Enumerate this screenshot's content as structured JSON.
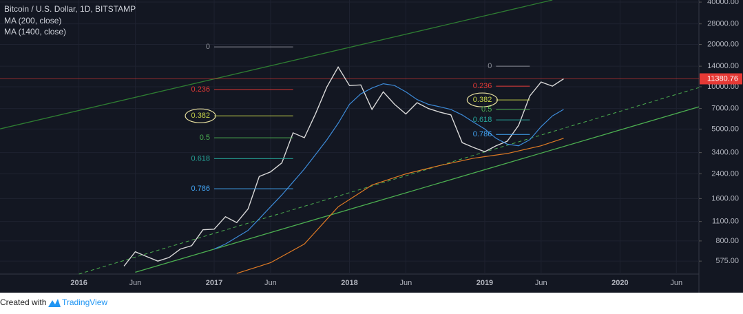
{
  "chart_data": {
    "type": "line",
    "title": "Bitcoin / U.S. Dollar, 1D, BITSTAMP",
    "log_scale": true,
    "xlim": [
      "2015-06",
      "2020-08"
    ],
    "xticks": [
      {
        "value": "2016-01",
        "label": "2016"
      },
      {
        "value": "2016-06",
        "label": "Jun"
      },
      {
        "value": "2017-01",
        "label": "2017"
      },
      {
        "value": "2017-06",
        "label": "Jun"
      },
      {
        "value": "2018-01",
        "label": "2018"
      },
      {
        "value": "2018-06",
        "label": "Jun"
      },
      {
        "value": "2019-01",
        "label": "2019"
      },
      {
        "value": "2019-06",
        "label": "Jun"
      },
      {
        "value": "2020-01",
        "label": "2020"
      },
      {
        "value": "2020-06",
        "label": "Jun"
      }
    ],
    "ylim": [
      465,
      41400
    ],
    "yticks": [
      {
        "value": 40000,
        "label": "40000.00"
      },
      {
        "value": 28000,
        "label": "28000.00"
      },
      {
        "value": 20000,
        "label": "20000.00"
      },
      {
        "value": 14000,
        "label": "14000.00"
      },
      {
        "value": 10000,
        "label": "10000.00"
      },
      {
        "value": 7000,
        "label": "7000.00"
      },
      {
        "value": 5000,
        "label": "5000.00"
      },
      {
        "value": 3400,
        "label": "3400.00"
      },
      {
        "value": 2400,
        "label": "2400.00"
      },
      {
        "value": 1600,
        "label": "1600.00"
      },
      {
        "value": 1100,
        "label": "1100.00"
      },
      {
        "value": 800,
        "label": "800.00"
      },
      {
        "value": 575,
        "label": "575.00"
      }
    ],
    "grid": true,
    "last_price": 11380.76,
    "last_price_color": "#e53935",
    "series": [
      {
        "name": "BTCUSD",
        "color": "#d8d8d8",
        "x": [
          "2016-05",
          "2016-06",
          "2016-07",
          "2016-08",
          "2016-09",
          "2016-10",
          "2016-11",
          "2016-12",
          "2017-01",
          "2017-02",
          "2017-03",
          "2017-04",
          "2017-05",
          "2017-06",
          "2017-07",
          "2017-08",
          "2017-09",
          "2017-10",
          "2017-11",
          "2017-12",
          "2018-01",
          "2018-02",
          "2018-03",
          "2018-04",
          "2018-05",
          "2018-06",
          "2018-07",
          "2018-08",
          "2018-09",
          "2018-10",
          "2018-11",
          "2018-12",
          "2019-01",
          "2019-02",
          "2019-03",
          "2019-04",
          "2019-05",
          "2019-06",
          "2019-07",
          "2019-08"
        ],
        "values": [
          530,
          670,
          620,
          575,
          610,
          700,
          740,
          960,
          970,
          1190,
          1080,
          1350,
          2300,
          2480,
          2870,
          4700,
          4340,
          6450,
          10000,
          13800,
          10200,
          10300,
          6900,
          9200,
          7500,
          6400,
          7700,
          7000,
          6600,
          6300,
          4000,
          3700,
          3450,
          3800,
          4100,
          5300,
          8600,
          10800,
          10100,
          11380
        ]
      },
      {
        "name": "MA (200, close)",
        "color": "#3d8bd9",
        "x": [
          "2017-01",
          "2017-02",
          "2017-03",
          "2017-04",
          "2017-05",
          "2017-06",
          "2017-07",
          "2017-08",
          "2017-09",
          "2017-10",
          "2017-11",
          "2017-12",
          "2018-01",
          "2018-02",
          "2018-03",
          "2018-04",
          "2018-05",
          "2018-06",
          "2018-07",
          "2018-08",
          "2018-09",
          "2018-10",
          "2018-11",
          "2018-12",
          "2019-01",
          "2019-02",
          "2019-03",
          "2019-04",
          "2019-05",
          "2019-06",
          "2019-07",
          "2019-08"
        ],
        "values": [
          700,
          760,
          850,
          950,
          1150,
          1400,
          1700,
          2100,
          2600,
          3300,
          4200,
          5500,
          7500,
          8900,
          9800,
          10500,
          10200,
          9200,
          8100,
          7500,
          7200,
          6900,
          6300,
          5600,
          5000,
          4300,
          3900,
          3800,
          4200,
          5200,
          6200,
          6900
        ]
      },
      {
        "name": "MA (1400, close)",
        "color": "#e07b24",
        "x": [
          "2017-03",
          "2017-06",
          "2017-09",
          "2017-12",
          "2018-03",
          "2018-06",
          "2018-09",
          "2018-12",
          "2019-03",
          "2019-06",
          "2019-08"
        ],
        "values": [
          470,
          560,
          760,
          1400,
          2000,
          2400,
          2750,
          3100,
          3350,
          3800,
          4300
        ]
      }
    ],
    "trend_lines": [
      {
        "color": "#4caf50",
        "dashed": false,
        "x": [
          "2016-06",
          "2020-08"
        ],
        "values": [
          479,
          7200
        ]
      },
      {
        "color": "#4caf50",
        "dashed": true,
        "x": [
          "2016-01",
          "2020-08"
        ],
        "values": [
          465,
          9860
        ]
      },
      {
        "color": "#2e7d32",
        "dashed": false,
        "x": [
          "2015-06",
          "2019-07"
        ],
        "values": [
          5010,
          41400
        ]
      }
    ],
    "fib_sets": [
      {
        "x": [
          "2017-01",
          "2017-08"
        ],
        "levels": [
          {
            "label": "0",
            "value": 19200,
            "color": "#8a8d96"
          },
          {
            "label": "0.236",
            "value": 9530,
            "color": "#e53935"
          },
          {
            "label": "0.382",
            "value": 6210,
            "color": "#c6d34a",
            "highlight": true
          },
          {
            "label": "0.5",
            "value": 4330,
            "color": "#4caf50"
          },
          {
            "label": "0.618",
            "value": 3080,
            "color": "#26a69a"
          },
          {
            "label": "0.786",
            "value": 1880,
            "color": "#42a5f5"
          }
        ]
      },
      {
        "x": [
          "2019-02",
          "2019-05"
        ],
        "levels": [
          {
            "label": "0",
            "value": 14000,
            "color": "#8a8d96"
          },
          {
            "label": "0.236",
            "value": 10100,
            "color": "#e53935"
          },
          {
            "label": "0.382",
            "value": 8060,
            "color": "#c6d34a",
            "highlight": true
          },
          {
            "label": "0.5",
            "value": 6870,
            "color": "#4caf50"
          },
          {
            "label": "0.618",
            "value": 5810,
            "color": "#26a69a"
          },
          {
            "label": "0.786",
            "value": 4580,
            "color": "#42a5f5"
          }
        ]
      }
    ]
  },
  "footer": {
    "prefix": "Created with",
    "brand": "TradingView"
  }
}
